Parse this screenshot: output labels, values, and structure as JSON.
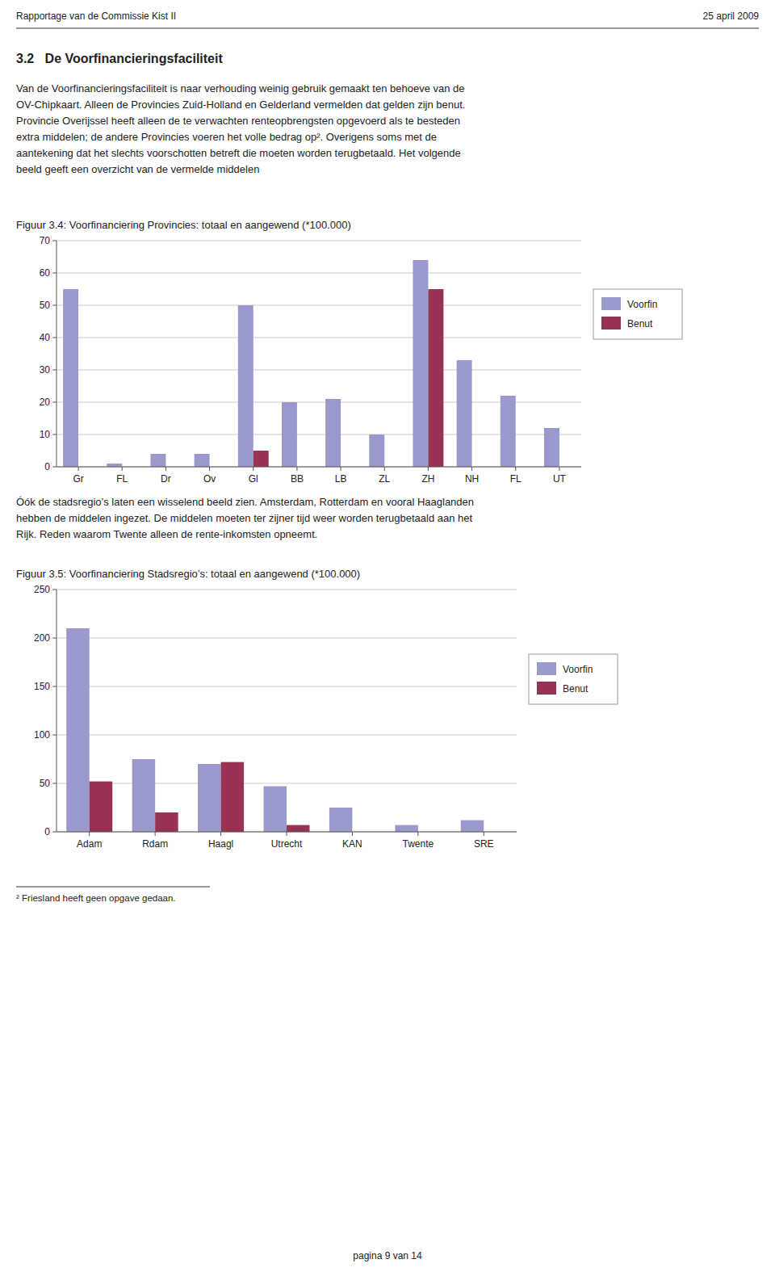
{
  "header_left": "Rapportage van de Commissie Kist II",
  "header_right": "25 april 2009",
  "section_title": "3.2   De Voorfinancieringsfaciliteit",
  "para1_lines": [
    "Van de Voorfinancieringsfaciliteit is naar verhouding weinig gebruik gemaakt ten behoeve van de",
    "OV-Chipkaart. Alleen de Provincies Zuid-Holland en Gelderland vermelden dat gelden zijn benut.",
    "Provincie Overijssel heeft alleen de te verwachten renteopbrengsten opgevoerd als te besteden",
    "extra middelen; de andere Provincies voeren het volle bedrag op². Overigens soms met de",
    "aantekening dat het slechts voorschotten betreft die moeten worden terugbetaald. Het volgende",
    "beeld geeft een overzicht van de vermelde middelen"
  ],
  "para2_lines": [
    "Óók de stadsregio’s laten een wisselend beeld zien. Amsterdam, Rotterdam en vooral Haaglanden",
    "hebben de middelen ingezet. De middelen moeten ter zijner tijd weer worden terugbetaald aan het",
    "Rijk. Reden waarom Twente alleen de rente-inkomsten opneemt."
  ],
  "footnote": "² Friesland heeft geen opgave gedaan.",
  "page_footer": "pagina 9 van 14",
  "chart_data": [
    {
      "type": "bar",
      "title": "Figuur 3.4: Voorfinanciering Provincies: totaal en aangewend (*100.000)",
      "categories": [
        "Gr",
        "FL",
        "Dr",
        "Ov",
        "Gl",
        "BB",
        "LB",
        "ZL",
        "ZH",
        "NH",
        "FL",
        "UT"
      ],
      "series": [
        {
          "name": "Voorfin",
          "color": "#9999CC",
          "values": [
            55,
            1,
            4,
            4,
            50,
            20,
            21,
            10,
            64,
            33,
            22,
            12
          ]
        },
        {
          "name": "Benut",
          "color": "#993355",
          "values": [
            0,
            0,
            0,
            0,
            5,
            0,
            0,
            0,
            55,
            0,
            0,
            0
          ]
        }
      ],
      "ylim": [
        0,
        70
      ],
      "yticks": [
        0,
        10,
        20,
        30,
        40,
        50,
        60,
        70
      ],
      "grid": true,
      "legend": "right"
    },
    {
      "type": "bar",
      "title": "Figuur 3.5: Voorfinanciering Stadsregio’s: totaal en aangewend (*100.000)",
      "categories": [
        "Adam",
        "Rdam",
        "Haagl",
        "Utrecht",
        "KAN",
        "Twente",
        "SRE"
      ],
      "series": [
        {
          "name": "Voorfin",
          "color": "#9999CC",
          "values": [
            210,
            75,
            70,
            47,
            25,
            7,
            12
          ]
        },
        {
          "name": "Benut",
          "color": "#993355",
          "values": [
            52,
            20,
            72,
            7,
            0,
            0,
            0
          ]
        }
      ],
      "ylim": [
        0,
        250
      ],
      "yticks": [
        0,
        50,
        100,
        150,
        200,
        250
      ],
      "grid": true,
      "legend": "right"
    }
  ]
}
